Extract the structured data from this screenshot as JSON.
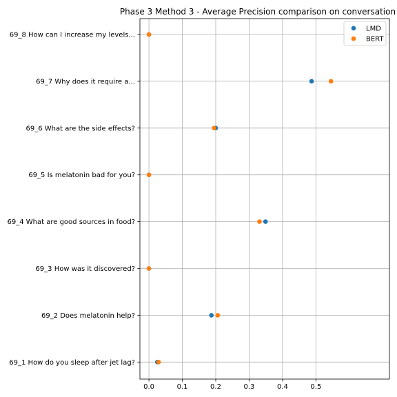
{
  "chart_data": {
    "type": "scatter",
    "title": "Phase 3 Method 3 - Average Precision comparison on conversation",
    "xlabel": "",
    "ylabel": "",
    "xlim": [
      -0.027,
      0.72
    ],
    "x_ticks": [
      0.0,
      0.1,
      0.2,
      0.3,
      0.4,
      0.5
    ],
    "x_tick_labels": [
      "0.0",
      "0.1",
      "0.2",
      "0.3",
      "0.4",
      "0.5"
    ],
    "categories": [
      "69_8 How can I increase my levels...",
      "69_7 Why does it require a...",
      "69_6 What are the side effects?",
      "69_5 Is melatonin bad for you?",
      "69_4 What are good sources in food?",
      "69_3 How was it discovered?",
      "69_2 Does melatonin help?",
      "69_1 How do you sleep after jet lag?"
    ],
    "grid": true,
    "legend_position": "top-right",
    "series": [
      {
        "name": "LMD",
        "color": "#1f77b4",
        "values": [
          0.0,
          0.487,
          0.2,
          0.0,
          0.349,
          0.0,
          0.187,
          0.025
        ]
      },
      {
        "name": "BERT",
        "color": "#ff7f0e",
        "values": [
          0.0,
          0.545,
          0.195,
          0.0,
          0.331,
          0.0,
          0.206,
          0.029
        ]
      }
    ]
  }
}
